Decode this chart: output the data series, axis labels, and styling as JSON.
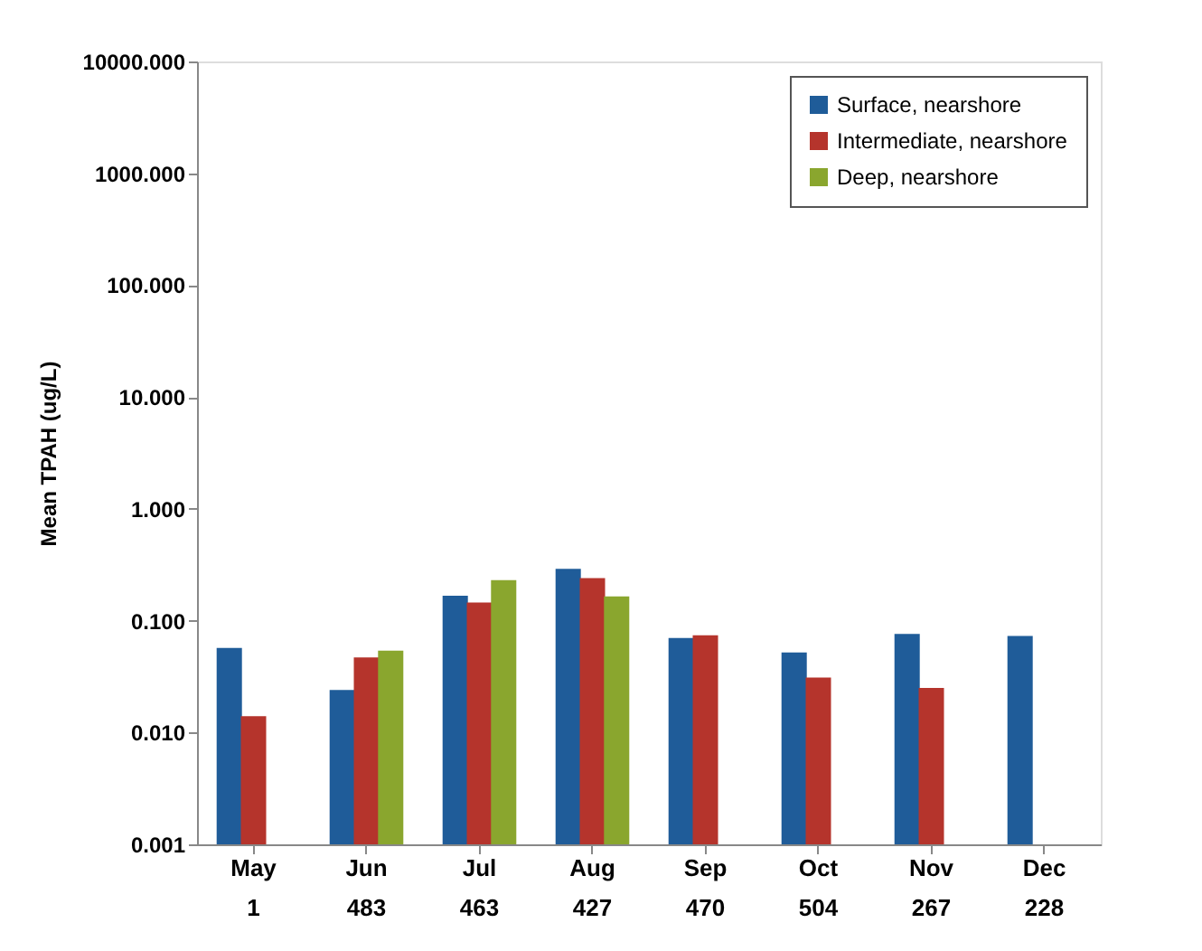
{
  "chart_data": {
    "type": "bar",
    "ylabel": "Mean TPAH (ug/L)",
    "categories": [
      "May\n1",
      "Jun\n483",
      "Jul\n463",
      "Aug\n427",
      "Sep\n470",
      "Oct\n504",
      "Nov\n267",
      "Dec\n228"
    ],
    "series": [
      {
        "name": "Surface, nearshore",
        "color": "#1f5c99",
        "values": [
          0.057,
          0.024,
          0.167,
          0.29,
          0.07,
          0.052,
          0.076,
          0.073
        ]
      },
      {
        "name": "Intermediate, nearshore",
        "color": "#b5342c",
        "values": [
          0.014,
          0.047,
          0.145,
          0.24,
          0.074,
          0.031,
          0.025,
          null
        ]
      },
      {
        "name": "Deep, nearshore",
        "color": "#8aa62e",
        "values": [
          null,
          0.054,
          0.23,
          0.165,
          null,
          null,
          null,
          null
        ]
      }
    ],
    "log": "y",
    "ylim": [
      0.001,
      10000
    ],
    "yticks": [
      {
        "value": 0.001,
        "label": "0.001"
      },
      {
        "value": 0.01,
        "label": "0.010"
      },
      {
        "value": 0.1,
        "label": "0.100"
      },
      {
        "value": 1,
        "label": "1.000"
      },
      {
        "value": 10,
        "label": "10.000"
      },
      {
        "value": 100,
        "label": "100.000"
      },
      {
        "value": 1000,
        "label": "1000.000"
      },
      {
        "value": 10000,
        "label": "10000.000"
      }
    ],
    "grid": false,
    "legend": "top right"
  }
}
